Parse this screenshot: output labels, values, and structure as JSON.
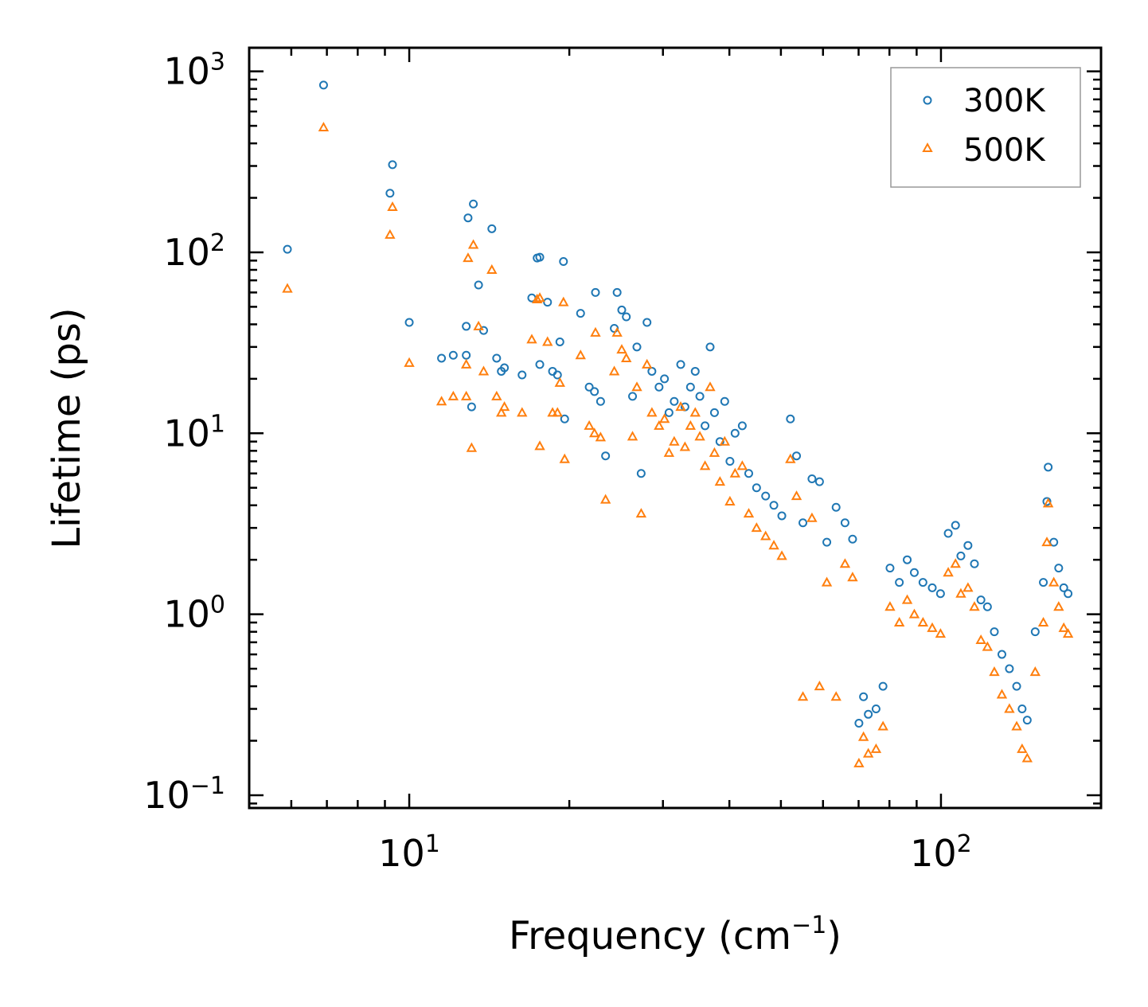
{
  "chart_data": {
    "type": "scatter",
    "xscale": "log",
    "yscale": "log",
    "xlim": [
      5,
      200
    ],
    "ylim": [
      0.085,
      1350
    ],
    "xlabel": {
      "text": "Frequency (cm",
      "superscript": "−1",
      "suffix": ")"
    },
    "ylabel": "Lifetime (ps)",
    "x_ticks": [
      {
        "base": "10",
        "exp": "1",
        "value": 10
      },
      {
        "base": "10",
        "exp": "2",
        "value": 100
      }
    ],
    "y_ticks": [
      {
        "base": "10",
        "exp": "3",
        "value": 1000
      },
      {
        "base": "10",
        "exp": "2",
        "value": 100
      },
      {
        "base": "10",
        "exp": "1",
        "value": 10
      },
      {
        "base": "10",
        "exp": "0",
        "value": 1
      },
      {
        "base": "10",
        "exp": "−1",
        "value": 0.1
      }
    ],
    "legend_position": "top-right",
    "series": [
      {
        "name": "300K",
        "marker": "circle-open",
        "color": "#1f77b4",
        "points": [
          [
            5.9,
            104
          ],
          [
            6.9,
            840
          ],
          [
            9.2,
            212
          ],
          [
            9.3,
            305
          ],
          [
            10,
            41
          ],
          [
            11.5,
            26
          ],
          [
            12.1,
            27
          ],
          [
            12.8,
            27
          ],
          [
            12.8,
            39
          ],
          [
            12.9,
            155
          ],
          [
            13.1,
            14
          ],
          [
            13.2,
            185
          ],
          [
            13.5,
            66
          ],
          [
            13.8,
            37
          ],
          [
            14.3,
            135
          ],
          [
            14.6,
            26
          ],
          [
            14.9,
            22
          ],
          [
            15.1,
            23
          ],
          [
            16.3,
            21
          ],
          [
            17.0,
            56
          ],
          [
            17.4,
            93
          ],
          [
            17.6,
            94
          ],
          [
            17.6,
            24
          ],
          [
            18.2,
            53
          ],
          [
            18.6,
            22
          ],
          [
            19.0,
            21
          ],
          [
            19.2,
            32
          ],
          [
            19.5,
            89
          ],
          [
            19.6,
            12
          ],
          [
            21.0,
            46
          ],
          [
            21.8,
            18
          ],
          [
            22.3,
            17
          ],
          [
            22.4,
            60
          ],
          [
            22.9,
            15
          ],
          [
            23.4,
            7.5
          ],
          [
            24.3,
            38
          ],
          [
            24.6,
            60
          ],
          [
            25.1,
            48
          ],
          [
            25.6,
            44
          ],
          [
            26.3,
            16
          ],
          [
            26.8,
            30
          ],
          [
            27.3,
            6
          ],
          [
            28.0,
            41
          ],
          [
            28.6,
            22
          ],
          [
            29.5,
            18
          ],
          [
            30.2,
            20
          ],
          [
            30.8,
            13
          ],
          [
            31.5,
            15
          ],
          [
            32.4,
            24
          ],
          [
            33.0,
            14
          ],
          [
            33.8,
            18
          ],
          [
            34.5,
            22
          ],
          [
            35.2,
            16
          ],
          [
            36.0,
            11
          ],
          [
            36.8,
            30
          ],
          [
            37.5,
            13
          ],
          [
            38.4,
            9
          ],
          [
            39.2,
            15
          ],
          [
            40.1,
            7
          ],
          [
            41.0,
            10
          ],
          [
            42.3,
            11
          ],
          [
            43.5,
            6
          ],
          [
            45.0,
            5
          ],
          [
            46.8,
            4.5
          ],
          [
            48.5,
            4
          ],
          [
            50.2,
            3.5
          ],
          [
            52.1,
            12
          ],
          [
            53.5,
            7.5
          ],
          [
            55.0,
            3.2
          ],
          [
            57.2,
            5.6
          ],
          [
            59.1,
            5.4
          ],
          [
            61.0,
            2.5
          ],
          [
            63.5,
            3.9
          ],
          [
            66.0,
            3.2
          ],
          [
            68.2,
            2.6
          ],
          [
            70.1,
            0.25
          ],
          [
            71.5,
            0.35
          ],
          [
            73.0,
            0.28
          ],
          [
            75.5,
            0.3
          ],
          [
            77.8,
            0.4
          ],
          [
            80.2,
            1.8
          ],
          [
            83.5,
            1.5
          ],
          [
            86.4,
            2.0
          ],
          [
            89.1,
            1.7
          ],
          [
            92.5,
            1.5
          ],
          [
            96.3,
            1.4
          ],
          [
            99.8,
            1.3
          ],
          [
            103.2,
            2.8
          ],
          [
            106.5,
            3.1
          ],
          [
            109.0,
            2.1
          ],
          [
            112.4,
            2.4
          ],
          [
            115.6,
            1.9
          ],
          [
            118.9,
            1.2
          ],
          [
            122.3,
            1.1
          ],
          [
            126.0,
            0.8
          ],
          [
            130.2,
            0.6
          ],
          [
            134.5,
            0.5
          ],
          [
            138.8,
            0.4
          ],
          [
            142.1,
            0.3
          ],
          [
            145.3,
            0.26
          ],
          [
            150.4,
            0.8
          ],
          [
            155.8,
            1.5
          ],
          [
            158.2,
            4.2
          ],
          [
            159.1,
            6.5
          ],
          [
            163.0,
            2.5
          ],
          [
            166.5,
            1.8
          ],
          [
            170.2,
            1.4
          ],
          [
            173.4,
            1.3
          ]
        ]
      },
      {
        "name": "500K",
        "marker": "triangle-open",
        "color": "#ff7f0e",
        "points": [
          [
            5.9,
            63
          ],
          [
            6.9,
            490
          ],
          [
            9.2,
            125
          ],
          [
            9.3,
            178
          ],
          [
            10,
            24.5
          ],
          [
            11.5,
            15
          ],
          [
            12.1,
            16
          ],
          [
            12.8,
            16
          ],
          [
            12.8,
            24
          ],
          [
            12.9,
            93
          ],
          [
            13.1,
            8.3
          ],
          [
            13.2,
            110
          ],
          [
            13.5,
            39
          ],
          [
            13.8,
            22
          ],
          [
            14.3,
            80
          ],
          [
            14.6,
            16
          ],
          [
            14.9,
            13
          ],
          [
            15.1,
            14
          ],
          [
            16.3,
            13
          ],
          [
            17.0,
            33
          ],
          [
            17.4,
            55
          ],
          [
            17.6,
            56
          ],
          [
            17.6,
            8.5
          ],
          [
            18.2,
            32
          ],
          [
            18.6,
            13
          ],
          [
            19.0,
            13
          ],
          [
            19.2,
            19
          ],
          [
            19.5,
            53
          ],
          [
            19.6,
            7.2
          ],
          [
            21.0,
            27
          ],
          [
            21.8,
            11
          ],
          [
            22.3,
            10
          ],
          [
            22.4,
            36
          ],
          [
            22.9,
            9.5
          ],
          [
            23.4,
            4.3
          ],
          [
            24.3,
            22
          ],
          [
            24.6,
            36
          ],
          [
            25.1,
            29
          ],
          [
            25.6,
            26
          ],
          [
            26.3,
            9.6
          ],
          [
            26.8,
            18
          ],
          [
            27.3,
            3.6
          ],
          [
            28.0,
            24
          ],
          [
            28.6,
            13
          ],
          [
            29.5,
            11
          ],
          [
            30.2,
            12
          ],
          [
            30.8,
            7.8
          ],
          [
            31.5,
            9
          ],
          [
            32.4,
            14
          ],
          [
            33.0,
            8.4
          ],
          [
            33.8,
            11
          ],
          [
            34.5,
            13
          ],
          [
            35.2,
            9.6
          ],
          [
            36.0,
            6.6
          ],
          [
            36.8,
            18
          ],
          [
            37.5,
            7.8
          ],
          [
            38.4,
            5.4
          ],
          [
            39.2,
            9
          ],
          [
            40.1,
            4.2
          ],
          [
            41.0,
            6
          ],
          [
            42.3,
            6.6
          ],
          [
            43.5,
            3.6
          ],
          [
            45.0,
            3
          ],
          [
            46.8,
            2.7
          ],
          [
            48.5,
            2.4
          ],
          [
            50.2,
            2.1
          ],
          [
            52.1,
            7.2
          ],
          [
            53.5,
            4.5
          ],
          [
            55.0,
            0.35
          ],
          [
            57.2,
            3.4
          ],
          [
            59.1,
            0.4
          ],
          [
            61.0,
            1.5
          ],
          [
            63.5,
            0.35
          ],
          [
            66.0,
            1.9
          ],
          [
            68.2,
            1.6
          ],
          [
            70.1,
            0.15
          ],
          [
            71.5,
            0.21
          ],
          [
            73.0,
            0.17
          ],
          [
            75.5,
            0.18
          ],
          [
            77.8,
            0.24
          ],
          [
            80.2,
            1.1
          ],
          [
            83.5,
            0.9
          ],
          [
            86.4,
            1.2
          ],
          [
            89.1,
            1.0
          ],
          [
            92.5,
            0.9
          ],
          [
            96.3,
            0.84
          ],
          [
            99.8,
            0.78
          ],
          [
            103.2,
            1.7
          ],
          [
            106.5,
            1.9
          ],
          [
            109.0,
            1.3
          ],
          [
            112.4,
            1.4
          ],
          [
            115.6,
            1.1
          ],
          [
            118.9,
            0.72
          ],
          [
            122.3,
            0.66
          ],
          [
            126.0,
            0.48
          ],
          [
            130.2,
            0.36
          ],
          [
            134.5,
            0.3
          ],
          [
            138.8,
            0.24
          ],
          [
            142.1,
            0.18
          ],
          [
            145.3,
            0.16
          ],
          [
            150.4,
            0.48
          ],
          [
            155.8,
            0.9
          ],
          [
            158.2,
            2.5
          ],
          [
            159.1,
            4.1
          ],
          [
            163.0,
            1.5
          ],
          [
            166.5,
            1.1
          ],
          [
            170.2,
            0.84
          ],
          [
            173.4,
            0.78
          ]
        ]
      }
    ]
  }
}
